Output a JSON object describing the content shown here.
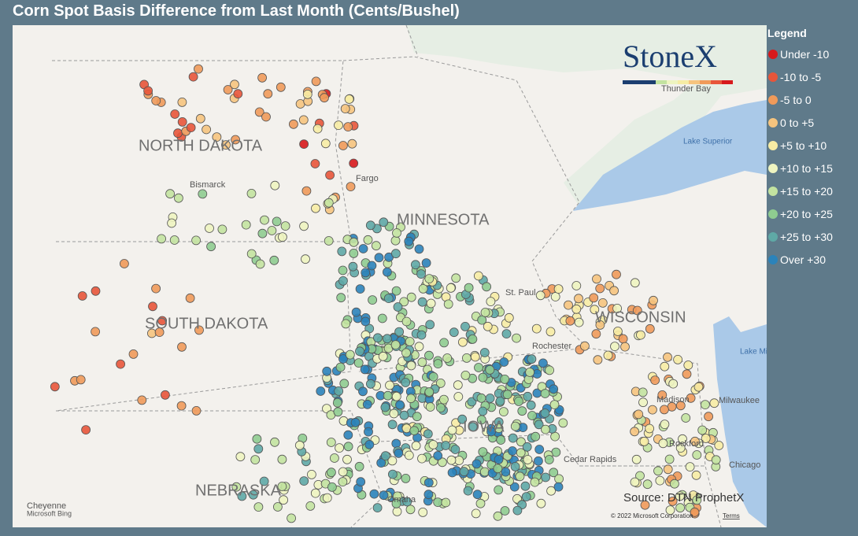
{
  "title": "Corn Spot Basis Difference from Last Month (Cents/Bushel)",
  "legend": {
    "title": "Legend",
    "items": [
      {
        "label": "Under -10",
        "color": "#d7191c"
      },
      {
        "label": "-10 to -5",
        "color": "#e8553a"
      },
      {
        "label": "-5 to 0",
        "color": "#f09a5a"
      },
      {
        "label": "0 to +5",
        "color": "#f6c47e"
      },
      {
        "label": "+5 to +10",
        "color": "#f7eca4"
      },
      {
        "label": "+10 to +15",
        "color": "#eef4c0"
      },
      {
        "label": "+15 to +20",
        "color": "#c3e3a0"
      },
      {
        "label": "+20 to +25",
        "color": "#8fcc90"
      },
      {
        "label": "+25 to +30",
        "color": "#5fa9a6"
      },
      {
        "label": "Over +30",
        "color": "#2b83ba"
      }
    ]
  },
  "logo": "StoneX",
  "map_labels": {
    "states": [
      "NORTH DAKOTA",
      "MINNESOTA",
      "SOUTH DAKOTA",
      "WISCONSIN",
      "IOWA",
      "NEBRASKA"
    ],
    "places": [
      "Bismarck",
      "Fargo",
      "Thunder Bay",
      "Lake Superior",
      "Lake Michigan",
      "St. Paul",
      "Rochester",
      "Madison",
      "Milwaukee",
      "Rockford",
      "Chicago",
      "Cedar Rapids",
      "Omaha",
      "Cheyenne"
    ]
  },
  "source": "Source: DTN ProphetX",
  "attribution": {
    "bing": "Microsoft Bing",
    "copyright": "© 2022 Microsoft Corporation",
    "terms": "Terms"
  }
}
